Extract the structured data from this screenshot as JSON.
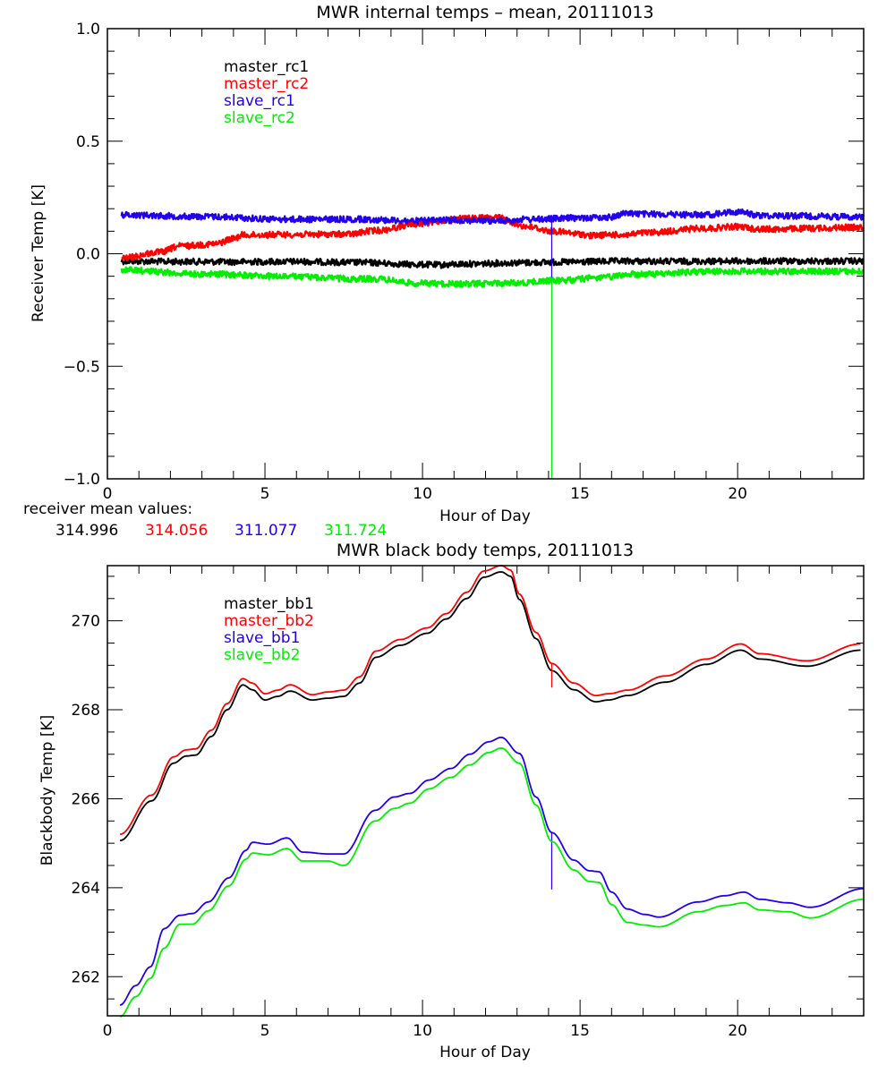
{
  "chart_data": [
    {
      "type": "line",
      "title": "MWR internal temps – mean, 20111013",
      "xlabel": "Hour of Day",
      "ylabel": "Receiver Temp [K]",
      "xlim": [
        0,
        24
      ],
      "ylim": [
        -1.0,
        1.0
      ],
      "xticks": [
        0,
        5,
        10,
        15,
        20
      ],
      "xtick_labels": [
        "0",
        "5",
        "10",
        "15",
        "20"
      ],
      "x_minor_step": 1,
      "yticks": [
        -1.0,
        -0.5,
        0.0,
        0.5,
        1.0
      ],
      "ytick_labels": [
        "−1.0",
        "−0.5",
        "0.0",
        "0.5",
        "1.0"
      ],
      "y_minor_step": 0.1,
      "grid": false,
      "legend_placement": "top-left",
      "series": [
        {
          "name": "master_rc1",
          "color": "#000000",
          "noisy": true,
          "x": [
            0.45,
            2,
            4,
            6,
            8,
            9.9,
            10.5,
            11.5,
            13,
            14.1,
            16.5,
            18,
            20,
            22,
            24
          ],
          "y": [
            -0.033,
            -0.035,
            -0.036,
            -0.035,
            -0.039,
            -0.048,
            -0.05,
            -0.045,
            -0.04,
            -0.038,
            -0.033,
            -0.034,
            -0.033,
            -0.033,
            -0.033
          ]
        },
        {
          "name": "master_rc2",
          "color": "#ff0000",
          "noisy": true,
          "x": [
            0.45,
            1.7,
            2.3,
            3.4,
            4.0,
            4.3,
            5.7,
            7.7,
            8.5,
            9.9,
            11.1,
            12.35,
            13.35,
            14.1,
            15.05,
            15.3,
            15.9,
            16.5,
            17.05,
            19,
            20,
            20.7,
            24
          ],
          "y": [
            -0.02,
            0.007,
            0.034,
            0.043,
            0.067,
            0.083,
            0.085,
            0.087,
            0.103,
            0.133,
            0.156,
            0.16,
            0.12,
            0.1,
            0.087,
            0.08,
            0.084,
            0.084,
            0.093,
            0.113,
            0.12,
            0.109,
            0.117
          ]
        },
        {
          "name": "slave_rc1",
          "color": "#2200ee",
          "noisy": true,
          "x": [
            0.45,
            3,
            5.7,
            7.95,
            9.9,
            11.1,
            12.35,
            13.35,
            15.3,
            15.9,
            16.5,
            17.05,
            19,
            20,
            20.7,
            24
          ],
          "y": [
            0.173,
            0.165,
            0.153,
            0.153,
            0.146,
            0.149,
            0.146,
            0.153,
            0.16,
            0.162,
            0.18,
            0.176,
            0.173,
            0.186,
            0.17,
            0.164
          ],
          "spike": {
            "x": 14.1,
            "y_end": -0.11
          }
        },
        {
          "name": "slave_rc2",
          "color": "#00ee00",
          "noisy": true,
          "x": [
            0.45,
            3,
            5.7,
            7.95,
            8.5,
            9.9,
            11.1,
            13,
            14.1,
            15.9,
            16.5,
            17.05,
            19,
            20,
            24
          ],
          "y": [
            -0.072,
            -0.09,
            -0.101,
            -0.112,
            -0.112,
            -0.132,
            -0.134,
            -0.13,
            -0.12,
            -0.105,
            -0.092,
            -0.092,
            -0.079,
            -0.078,
            -0.079
          ],
          "spike": {
            "x": 14.1,
            "y_end": -1.0
          }
        }
      ],
      "annotation": {
        "label": "receiver mean values:",
        "values": [
          {
            "text": "314.996",
            "color": "#000000"
          },
          {
            "text": "314.056",
            "color": "#ff0000"
          },
          {
            "text": "311.077",
            "color": "#2200ee"
          },
          {
            "text": "311.724",
            "color": "#00ee00"
          }
        ]
      }
    },
    {
      "type": "line",
      "title": "MWR black body temps, 20111013",
      "xlabel": "Hour of Day",
      "ylabel": "Blackbody Temp [K]",
      "xlim": [
        0,
        24
      ],
      "ylim": [
        261.12,
        271.24
      ],
      "xticks": [
        0,
        5,
        10,
        15,
        20
      ],
      "xtick_labels": [
        "0",
        "5",
        "10",
        "15",
        "20"
      ],
      "x_minor_step": 1,
      "yticks": [
        262,
        264,
        266,
        268,
        270
      ],
      "ytick_labels": [
        "262",
        "264",
        "266",
        "268",
        "270"
      ],
      "y_minor_step": 0.5,
      "grid": false,
      "legend_placement": "top-left",
      "series": [
        {
          "name": "master_bb1",
          "color": "#000000",
          "noisy": false,
          "x": [
            0.4,
            1.4,
            2.1,
            2.5,
            2.8,
            3.3,
            3.8,
            4.3,
            4.6,
            5.0,
            5.4,
            5.8,
            6.5,
            7.0,
            7.5,
            8.0,
            8.52,
            9.3,
            10.15,
            10.75,
            11.4,
            11.95,
            12.5,
            12.8,
            13.07,
            13.6,
            14.1,
            14.8,
            15.5,
            15.9,
            16.5,
            17.7,
            19.0,
            20.1,
            20.7,
            22.2,
            23.9
          ],
          "y": [
            265.06,
            265.95,
            266.8,
            266.96,
            266.98,
            267.4,
            268.0,
            268.56,
            268.45,
            268.22,
            268.3,
            268.42,
            268.22,
            268.26,
            268.3,
            268.6,
            269.18,
            269.45,
            269.72,
            270.04,
            270.5,
            270.98,
            271.1,
            271.0,
            270.48,
            269.6,
            268.88,
            268.45,
            268.18,
            268.22,
            268.32,
            268.62,
            269.02,
            269.34,
            269.14,
            268.98,
            269.34
          ]
        },
        {
          "name": "master_bb2",
          "color": "#ff0000",
          "noisy": false,
          "x": [
            0.4,
            1.4,
            2.1,
            2.5,
            2.8,
            3.3,
            3.8,
            4.3,
            4.6,
            5.0,
            5.4,
            5.8,
            6.5,
            7.0,
            7.5,
            8.0,
            8.52,
            9.3,
            10.15,
            10.75,
            11.4,
            11.95,
            12.5,
            12.8,
            13.07,
            13.6,
            14.1,
            14.8,
            15.5,
            15.9,
            16.5,
            17.7,
            19.0,
            20.1,
            20.7,
            22.2,
            23.9
          ],
          "y": [
            265.2,
            266.08,
            266.94,
            267.1,
            267.12,
            267.54,
            268.14,
            268.7,
            268.6,
            268.36,
            268.44,
            268.56,
            268.34,
            268.4,
            268.44,
            268.74,
            269.32,
            269.58,
            269.84,
            270.16,
            270.64,
            271.12,
            271.24,
            271.14,
            270.6,
            269.74,
            269.04,
            268.6,
            268.32,
            268.36,
            268.44,
            268.76,
            269.14,
            269.48,
            269.26,
            269.1,
            269.48
          ],
          "spike": {
            "x": 14.1,
            "y_end": 268.5
          }
        },
        {
          "name": "slave_bb1",
          "color": "#2200ee",
          "noisy": false,
          "x": [
            0.4,
            0.9,
            1.36,
            1.8,
            2.3,
            2.7,
            3.2,
            3.85,
            4.4,
            4.6,
            5.1,
            5.7,
            6.2,
            7.0,
            7.5,
            8.5,
            9.1,
            9.6,
            10.2,
            10.9,
            11.5,
            12.1,
            12.5,
            13.07,
            13.6,
            14.1,
            14.8,
            15.3,
            15.6,
            16.0,
            16.5,
            17.05,
            17.5,
            18.75,
            19.6,
            20.2,
            20.7,
            21.6,
            22.3,
            24.0
          ],
          "y": [
            261.36,
            261.8,
            262.22,
            263.08,
            263.38,
            263.42,
            263.68,
            264.22,
            264.84,
            265.02,
            264.98,
            265.12,
            264.8,
            264.76,
            264.76,
            265.74,
            266.04,
            266.12,
            266.42,
            266.68,
            267.0,
            267.28,
            267.38,
            267.02,
            266.04,
            265.24,
            264.62,
            264.38,
            264.36,
            263.9,
            263.52,
            263.4,
            263.34,
            263.68,
            263.82,
            263.9,
            263.74,
            263.66,
            263.56,
            263.98
          ],
          "spike": {
            "x": 14.1,
            "y_end": 263.96
          }
        },
        {
          "name": "slave_bb2",
          "color": "#00ee00",
          "noisy": false,
          "x": [
            0.4,
            0.9,
            1.36,
            1.8,
            2.3,
            2.7,
            3.2,
            3.85,
            4.4,
            4.6,
            5.1,
            5.7,
            6.2,
            7.0,
            7.5,
            8.5,
            9.1,
            9.6,
            10.2,
            10.9,
            11.5,
            12.1,
            12.5,
            13.07,
            13.6,
            14.1,
            14.8,
            15.3,
            15.6,
            16.0,
            16.5,
            17.05,
            17.5,
            18.75,
            19.6,
            20.2,
            20.7,
            21.6,
            22.3,
            24.0
          ],
          "y": [
            261.1,
            261.55,
            261.96,
            262.64,
            263.18,
            263.18,
            263.48,
            264.04,
            264.64,
            264.78,
            264.74,
            264.88,
            264.6,
            264.6,
            264.5,
            265.5,
            265.78,
            265.9,
            266.22,
            266.48,
            266.76,
            267.04,
            267.14,
            266.8,
            265.86,
            265.04,
            264.4,
            264.14,
            264.12,
            263.62,
            263.22,
            263.16,
            263.12,
            263.46,
            263.6,
            263.66,
            263.5,
            263.46,
            263.32,
            263.74
          ]
        }
      ]
    }
  ]
}
